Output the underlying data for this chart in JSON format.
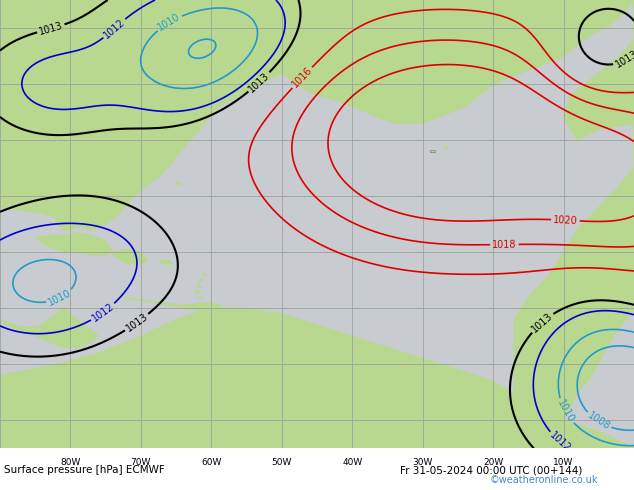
{
  "title_left": "Surface pressure [hPa] ECMWF",
  "title_right": "Fr 31-05-2024 00:00 UTC (00+144)",
  "watermark": "©weatheronline.co.uk",
  "bg_color": "#d0d8d0",
  "ocean_color": "#c8ccd0",
  "land_color": "#b8d890",
  "grid_color": "#a0a8a0",
  "bottom_bar_color": "#c8c8c8",
  "bottom_text_color": "#000000",
  "watermark_color": "#4488cc",
  "fig_width": 6.34,
  "fig_height": 4.9,
  "dpi": 100,
  "contour_red_color": "#dd0000",
  "contour_black_color": "#000000",
  "contour_blue_color": "#0000cc",
  "contour_cyan_color": "#2299cc",
  "xlabel_labels": [
    "80W",
    "70W",
    "60W",
    "50W",
    "40W",
    "30W",
    "20W",
    "10W"
  ]
}
